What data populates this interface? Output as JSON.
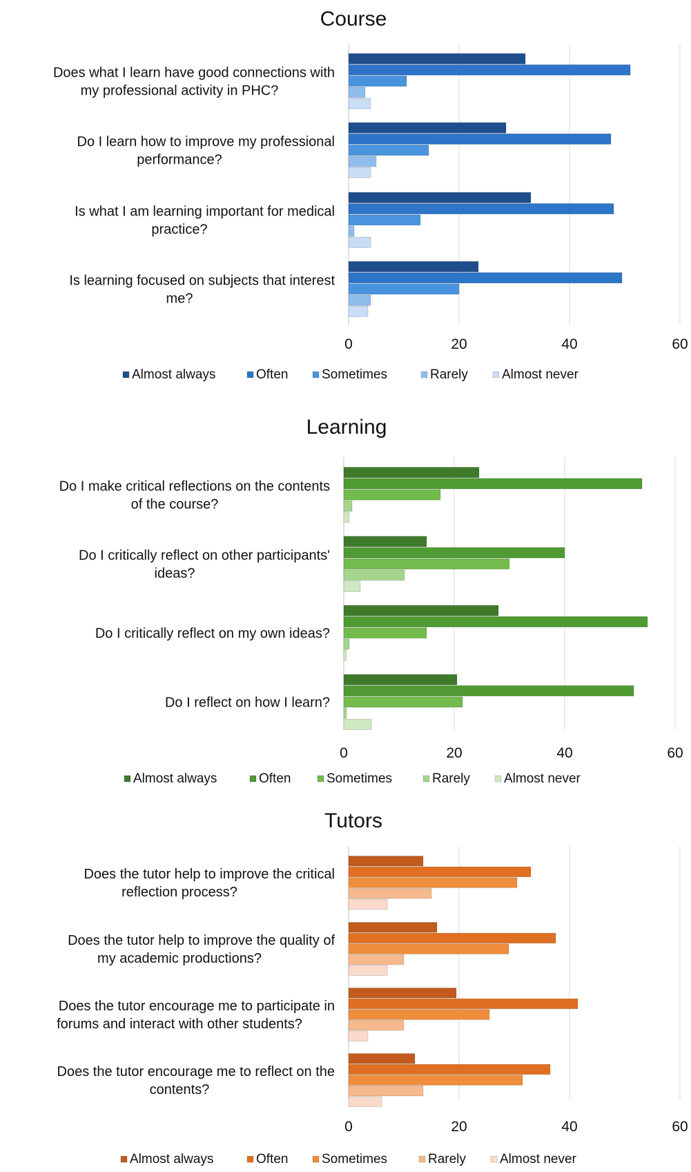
{
  "chart_data": [
    {
      "type": "bar",
      "orientation": "horizontal",
      "title": "Course",
      "categories": [
        [
          "Does what I learn have good connections with",
          "my professional activity in PHC?"
        ],
        [
          "Do I learn how to improve my professional",
          "performance?"
        ],
        [
          "Is what I am learning important for medical",
          "practice?"
        ],
        [
          "Is learning focused on subjects that interest",
          "me?"
        ]
      ],
      "series": [
        {
          "name": "Almost always",
          "color": "#1f4e8c",
          "values": [
            32,
            28.5,
            33,
            23.5
          ]
        },
        {
          "name": "Often",
          "color": "#2e75c9",
          "values": [
            51,
            47.5,
            48,
            49.5
          ]
        },
        {
          "name": "Sometimes",
          "color": "#4a94de",
          "values": [
            10.5,
            14.5,
            13,
            20
          ]
        },
        {
          "name": "Rarely",
          "color": "#8fbdec",
          "values": [
            3,
            5,
            1,
            4
          ]
        },
        {
          "name": "Almost never",
          "color": "#c9ddf5",
          "values": [
            4,
            4,
            4,
            3.5
          ]
        }
      ],
      "xlim": [
        0,
        60
      ],
      "xticks": [
        "0",
        "20",
        "40",
        "60"
      ],
      "grid": true,
      "legend": "bottom"
    },
    {
      "type": "bar",
      "orientation": "horizontal",
      "title": "Learning",
      "categories": [
        [
          "Do I make critical reflections on the contents",
          "of the course?"
        ],
        [
          "Do I critically reflect on other participants'",
          "ideas?"
        ],
        [
          "Do I critically reflect on my own ideas?"
        ],
        [
          "Do I reflect on how I learn?"
        ]
      ],
      "series": [
        {
          "name": "Almost always",
          "color": "#3f7a2a",
          "values": [
            24.5,
            15,
            28,
            20.5
          ]
        },
        {
          "name": "Often",
          "color": "#4f9a33",
          "values": [
            54,
            40,
            55,
            52.5
          ]
        },
        {
          "name": "Sometimes",
          "color": "#72bb4c",
          "values": [
            17.5,
            30,
            15,
            21.5
          ]
        },
        {
          "name": "Rarely",
          "color": "#a4d58a",
          "values": [
            1.5,
            11,
            1,
            0.5
          ]
        },
        {
          "name": "Almost never",
          "color": "#cfe8c2",
          "values": [
            1,
            3,
            0.5,
            5
          ]
        }
      ],
      "xlim": [
        0,
        60
      ],
      "xticks": [
        "0",
        "20",
        "40",
        "60"
      ],
      "grid": true,
      "legend": "bottom"
    },
    {
      "type": "bar",
      "orientation": "horizontal",
      "title": "Tutors",
      "categories": [
        [
          "Does the tutor help to improve the critical",
          "reflection process?"
        ],
        [
          "Does the tutor help to improve the quality of",
          "my academic productions?"
        ],
        [
          "Does the tutor encourage me to participate in",
          "forums and interact with other students?"
        ],
        [
          "Does the tutor encourage me to reflect on the",
          "contents?"
        ]
      ],
      "series": [
        {
          "name": "Almost always",
          "color": "#c25a1e",
          "values": [
            13.5,
            16,
            19.5,
            12
          ]
        },
        {
          "name": "Often",
          "color": "#e06f22",
          "values": [
            33,
            37.5,
            41.5,
            36.5
          ]
        },
        {
          "name": "Sometimes",
          "color": "#f08d3c",
          "values": [
            30.5,
            29,
            25.5,
            31.5
          ]
        },
        {
          "name": "Rarely",
          "color": "#f6b98e",
          "values": [
            15,
            10,
            10,
            13.5
          ]
        },
        {
          "name": "Almost never",
          "color": "#fadacb",
          "values": [
            7,
            7,
            3.5,
            6
          ]
        }
      ],
      "xlim": [
        0,
        60
      ],
      "xticks": [
        "0",
        "20",
        "40",
        "60"
      ],
      "grid": true,
      "legend": "bottom"
    }
  ]
}
